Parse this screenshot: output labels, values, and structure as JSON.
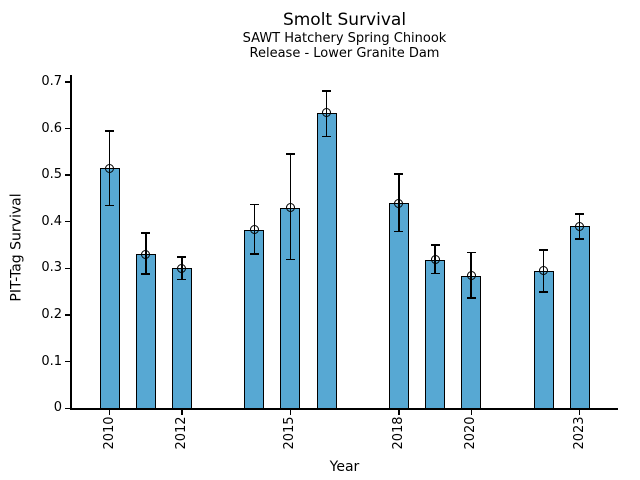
{
  "figure": {
    "title": "Smolt Survival",
    "subtitle_line1": "SAWT Hatchery Spring Chinook",
    "subtitle_line2": "Release - Lower Granite Dam"
  },
  "chart_data": {
    "type": "bar",
    "title": "Smolt Survival",
    "subtitle_line1": "SAWT Hatchery Spring Chinook",
    "subtitle_line2": "Release - Lower Granite Dam",
    "xlabel": "Year",
    "ylabel": "PIT-Tag Survival",
    "xlim": [
      2008.93,
      2024.06
    ],
    "ylim": [
      0,
      0.714
    ],
    "grid": false,
    "legend": "none",
    "yticks": [
      0,
      0.1,
      0.2,
      0.3,
      0.4,
      0.5,
      0.6,
      0.7
    ],
    "ytick_labels": [
      "0",
      "0.1",
      "0.2",
      "0.3",
      "0.4",
      "0.5",
      "0.6",
      "0.7"
    ],
    "xticks": [
      2010,
      2012,
      2015,
      2018,
      2020,
      2023
    ],
    "xtick_labels": [
      "2010",
      "2012",
      "2015",
      "2018",
      "2020",
      "2023"
    ],
    "bar_color": "#57A8D3",
    "bar_edge_color": "#000000",
    "error_bar_color": "#000000",
    "marker": "open-circle",
    "missing_years": [
      2013,
      2017,
      2021
    ],
    "series": [
      {
        "name": "PIT-Tag Survival",
        "points": [
          {
            "year": 2010,
            "value": 0.515,
            "err_low": 0.435,
            "err_high": 0.595
          },
          {
            "year": 2011,
            "value": 0.33,
            "err_low": 0.288,
            "err_high": 0.376
          },
          {
            "year": 2012,
            "value": 0.3,
            "err_low": 0.276,
            "err_high": 0.324
          },
          {
            "year": 2014,
            "value": 0.383,
            "err_low": 0.331,
            "err_high": 0.437
          },
          {
            "year": 2015,
            "value": 0.43,
            "err_low": 0.319,
            "err_high": 0.545
          },
          {
            "year": 2016,
            "value": 0.634,
            "err_low": 0.583,
            "err_high": 0.681
          },
          {
            "year": 2018,
            "value": 0.44,
            "err_low": 0.379,
            "err_high": 0.503
          },
          {
            "year": 2019,
            "value": 0.319,
            "err_low": 0.289,
            "err_high": 0.35
          },
          {
            "year": 2020,
            "value": 0.284,
            "err_low": 0.237,
            "err_high": 0.334
          },
          {
            "year": 2022,
            "value": 0.295,
            "err_low": 0.249,
            "err_high": 0.34
          },
          {
            "year": 2023,
            "value": 0.39,
            "err_low": 0.363,
            "err_high": 0.417
          }
        ]
      }
    ]
  }
}
